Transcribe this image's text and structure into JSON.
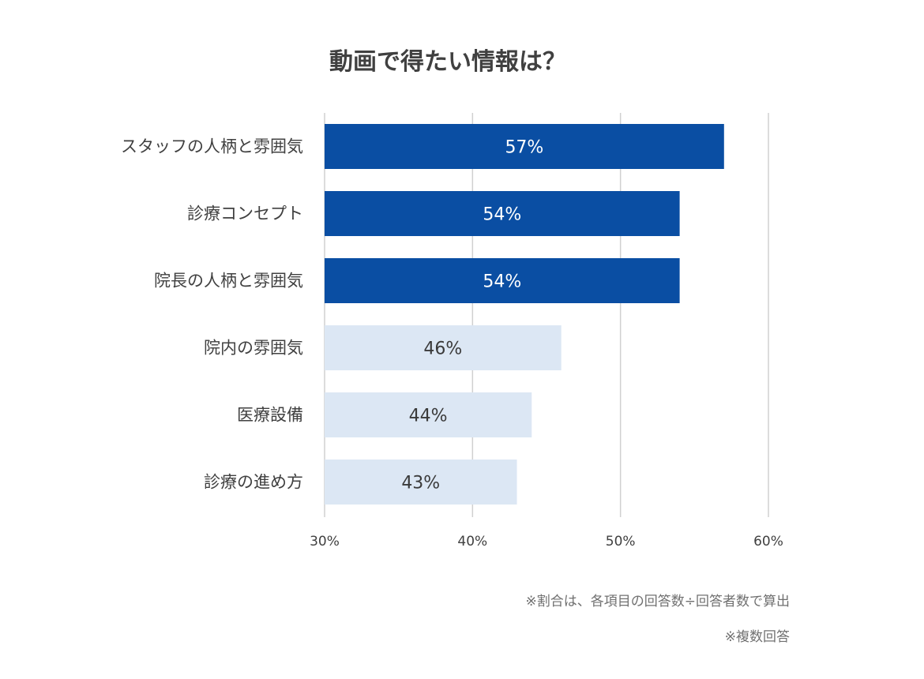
{
  "chart_data": {
    "type": "bar",
    "orientation": "horizontal",
    "title": "動画で得たい情報は？",
    "categories": [
      "スタッフの人柄と雰囲気",
      "診療コンセプト",
      "院長の人柄と雰囲気",
      "院内の雰囲気",
      "医療設備",
      "診療の進め方"
    ],
    "values": [
      57,
      54,
      54,
      46,
      44,
      43
    ],
    "value_labels": [
      "57%",
      "54%",
      "54%",
      "46%",
      "44%",
      "43%"
    ],
    "highlight": [
      true,
      true,
      true,
      false,
      false,
      false
    ],
    "xlim": [
      30,
      60
    ],
    "xticks": [
      30,
      40,
      50,
      60
    ],
    "xtick_labels": [
      "30%",
      "40%",
      "50%",
      "60%"
    ],
    "grid": true,
    "colors": {
      "highlight": "#0a4ea3",
      "normal": "#dce7f4",
      "highlight_text": "#ffffff",
      "normal_text": "#3a3a3a"
    },
    "notes": [
      "※割合は、各項目の回答数÷回答者数で算出",
      "※複数回答"
    ]
  }
}
